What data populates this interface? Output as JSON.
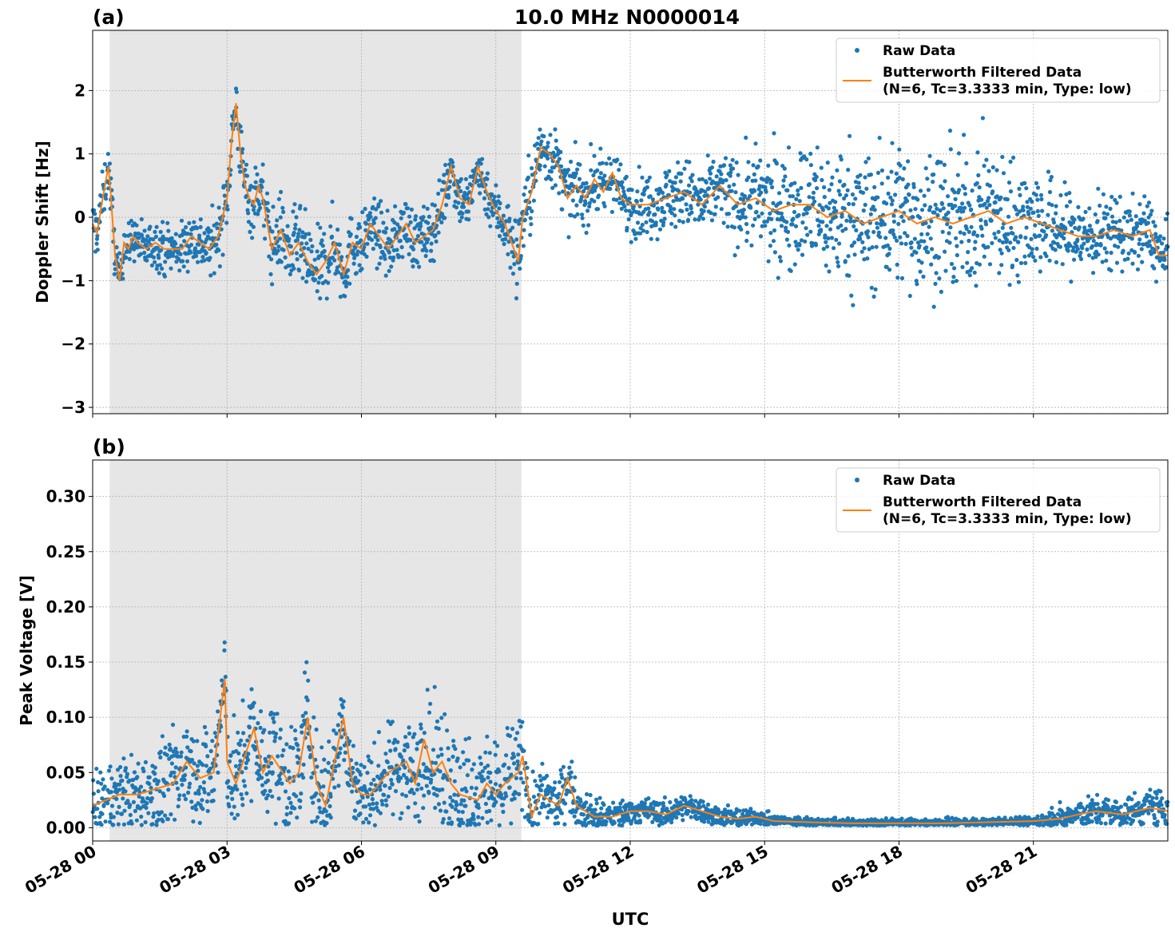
{
  "title": "10.0 MHz N0000014",
  "xlabel": "UTC",
  "colors": {
    "raw": "#1f77b4",
    "filtered": "#ff7f0e",
    "shade": "#e6e6e6",
    "grid": "#b0b0b0"
  },
  "legend": {
    "raw_label": "Raw Data",
    "filt_label_1": "Butterworth Filtered Data",
    "filt_label_2": "(N=6, Tc=3.3333 min, Type: low)",
    "position": "top-right"
  },
  "chart_data": [
    {
      "panel_label": "(a)",
      "type": "scatter",
      "ylabel": "Doppler Shift [Hz]",
      "xlim": [
        0,
        24
      ],
      "ylim": [
        -3.1,
        2.95
      ],
      "yticks": [
        -3,
        -2,
        -1,
        0,
        1,
        2
      ],
      "ytick_labels": [
        "−3",
        "−2",
        "−1",
        "0",
        "1",
        "2"
      ],
      "xticks": [
        0,
        3,
        6,
        9,
        12,
        15,
        18,
        21
      ],
      "xtick_labels": [
        "05-28 00",
        "05-28 03",
        "05-28 06",
        "05-28 09",
        "05-28 12",
        "05-28 15",
        "05-28 18",
        "05-28 21"
      ],
      "shaded_range": [
        0.38,
        9.57
      ],
      "grid": true,
      "series": [
        {
          "name": "Butterworth Filtered Data",
          "x": [
            0,
            0.1,
            0.2,
            0.3,
            0.35,
            0.4,
            0.5,
            0.6,
            0.7,
            0.8,
            0.9,
            1.0,
            1.2,
            1.4,
            1.6,
            1.8,
            2.0,
            2.2,
            2.4,
            2.6,
            2.8,
            3.0,
            3.1,
            3.2,
            3.3,
            3.4,
            3.5,
            3.6,
            3.7,
            3.8,
            4.0,
            4.2,
            4.4,
            4.6,
            4.8,
            5.0,
            5.2,
            5.4,
            5.6,
            5.8,
            6.0,
            6.2,
            6.4,
            6.6,
            6.8,
            7.0,
            7.2,
            7.4,
            7.6,
            7.8,
            8.0,
            8.2,
            8.4,
            8.6,
            8.8,
            9.0,
            9.2,
            9.4,
            9.5,
            9.6,
            9.8,
            10.0,
            10.2,
            10.4,
            10.6,
            10.8,
            11.0,
            11.2,
            11.4,
            11.6,
            11.8,
            12.0,
            12.4,
            12.8,
            13.2,
            13.6,
            14.0,
            14.4,
            14.8,
            15.2,
            15.6,
            16.0,
            16.4,
            16.8,
            17.2,
            17.6,
            18.0,
            18.4,
            18.8,
            19.2,
            19.6,
            20.0,
            20.4,
            20.8,
            21.2,
            21.6,
            22.0,
            22.4,
            22.8,
            23.2,
            23.6,
            23.8,
            24.0
          ],
          "values": [
            -0.1,
            -0.25,
            0.2,
            0.6,
            0.8,
            0.4,
            -0.6,
            -1.0,
            -0.4,
            -0.5,
            -0.3,
            -0.4,
            -0.5,
            -0.4,
            -0.5,
            -0.5,
            -0.5,
            -0.3,
            -0.4,
            -0.5,
            -0.3,
            0.3,
            1.2,
            1.8,
            1.0,
            0.5,
            0.3,
            0.2,
            0.5,
            0.3,
            -0.5,
            -0.2,
            -0.6,
            -0.4,
            -0.7,
            -0.9,
            -0.7,
            -0.4,
            -0.9,
            -0.4,
            -0.5,
            -0.1,
            -0.3,
            -0.5,
            -0.3,
            -0.1,
            -0.4,
            -0.3,
            -0.2,
            0.2,
            0.8,
            0.3,
            0.2,
            0.8,
            0.4,
            0.1,
            -0.1,
            -0.5,
            -0.7,
            0.0,
            0.4,
            1.1,
            1.0,
            0.8,
            0.3,
            0.5,
            0.3,
            0.6,
            0.4,
            0.7,
            0.3,
            0.2,
            0.2,
            0.3,
            0.4,
            0.2,
            0.5,
            0.2,
            0.3,
            0.1,
            0.2,
            0.2,
            0.0,
            0.1,
            -0.1,
            0.0,
            0.1,
            -0.1,
            0.0,
            -0.1,
            0.0,
            0.1,
            -0.1,
            0.0,
            -0.1,
            -0.2,
            -0.3,
            -0.3,
            -0.2,
            -0.3,
            -0.2,
            -0.6,
            -0.6
          ]
        },
        {
          "name": "Raw Data",
          "spread_x": [
            0,
            1,
            3,
            5,
            6,
            9,
            9.6,
            10,
            12,
            14,
            15,
            17,
            20,
            22,
            24
          ],
          "spread_values": [
            0.3,
            0.25,
            0.35,
            0.45,
            0.35,
            0.3,
            0.5,
            0.35,
            0.35,
            0.4,
            0.6,
            0.8,
            0.75,
            0.45,
            0.35
          ]
        }
      ]
    },
    {
      "panel_label": "(b)",
      "type": "scatter",
      "ylabel": "Peak Voltage [V]",
      "xlim": [
        0,
        24
      ],
      "ylim": [
        -0.012,
        0.333
      ],
      "yticks": [
        0.0,
        0.05,
        0.1,
        0.15,
        0.2,
        0.25,
        0.3
      ],
      "ytick_labels": [
        "0.00",
        "0.05",
        "0.10",
        "0.15",
        "0.20",
        "0.25",
        "0.30"
      ],
      "xticks": [
        0,
        3,
        6,
        9,
        12,
        15,
        18,
        21
      ],
      "xtick_labels": [
        "05-28 00",
        "05-28 03",
        "05-28 06",
        "05-28 09",
        "05-28 12",
        "05-28 15",
        "05-28 18",
        "05-28 21"
      ],
      "shaded_range": [
        0.38,
        9.57
      ],
      "grid": true,
      "series": [
        {
          "name": "Butterworth Filtered Data",
          "x": [
            0,
            0.3,
            0.6,
            1.0,
            1.4,
            1.8,
            2.1,
            2.4,
            2.7,
            2.95,
            3.0,
            3.2,
            3.6,
            3.8,
            4.0,
            4.4,
            4.6,
            4.8,
            5.0,
            5.2,
            5.6,
            5.8,
            6.0,
            6.2,
            6.6,
            7.0,
            7.2,
            7.4,
            7.6,
            7.8,
            8.0,
            8.2,
            8.6,
            8.8,
            9.0,
            9.2,
            9.5,
            9.6,
            9.8,
            10.0,
            10.4,
            10.6,
            10.8,
            11.0,
            11.2,
            11.6,
            12.0,
            12.4,
            12.8,
            13.2,
            13.6,
            14.0,
            14.4,
            14.8,
            15.2,
            16.0,
            17.0,
            18.0,
            19.0,
            20.0,
            21.0,
            21.6,
            22.0,
            22.4,
            23.0,
            23.6,
            24.0
          ],
          "values": [
            0.02,
            0.025,
            0.03,
            0.03,
            0.035,
            0.04,
            0.06,
            0.045,
            0.05,
            0.135,
            0.06,
            0.04,
            0.09,
            0.05,
            0.065,
            0.04,
            0.05,
            0.1,
            0.04,
            0.02,
            0.1,
            0.04,
            0.03,
            0.03,
            0.05,
            0.06,
            0.04,
            0.08,
            0.05,
            0.06,
            0.04,
            0.03,
            0.025,
            0.04,
            0.03,
            0.04,
            0.05,
            0.065,
            0.01,
            0.03,
            0.02,
            0.045,
            0.02,
            0.015,
            0.01,
            0.01,
            0.015,
            0.015,
            0.012,
            0.02,
            0.015,
            0.01,
            0.008,
            0.01,
            0.006,
            0.005,
            0.004,
            0.004,
            0.004,
            0.005,
            0.006,
            0.008,
            0.012,
            0.015,
            0.012,
            0.018,
            0.015
          ]
        },
        {
          "name": "Raw Data",
          "spread_x": [
            0,
            1,
            3,
            5,
            6,
            8,
            9.5,
            9.7,
            11,
            12,
            14,
            15,
            17,
            21,
            21.5,
            24
          ],
          "spread_values": [
            0.02,
            0.025,
            0.035,
            0.04,
            0.025,
            0.04,
            0.035,
            0.02,
            0.015,
            0.008,
            0.008,
            0.004,
            0.003,
            0.003,
            0.008,
            0.012
          ]
        }
      ]
    }
  ]
}
